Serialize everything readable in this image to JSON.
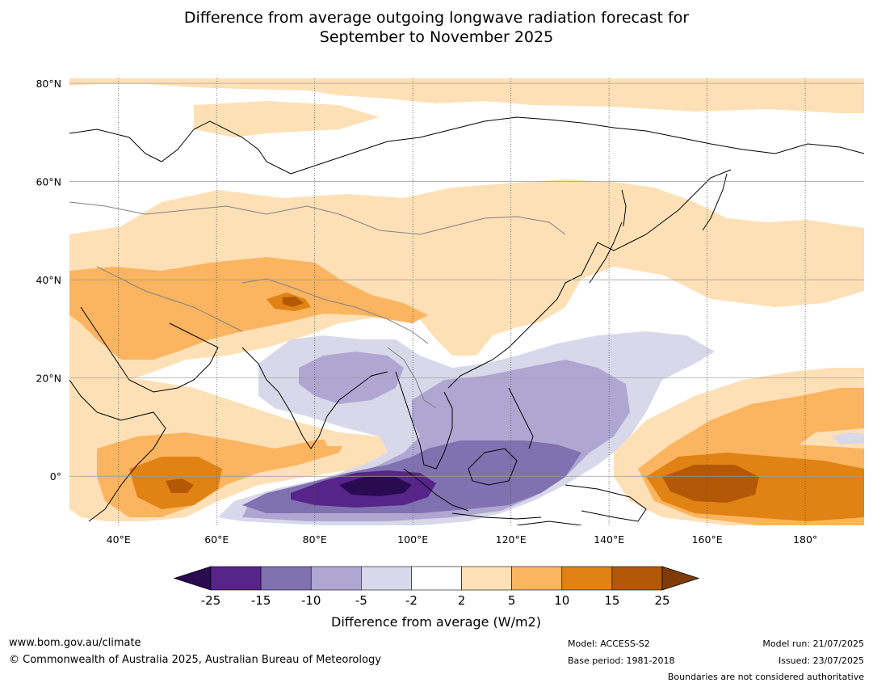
{
  "title_line1": "Difference from average outgoing longwave radiation forecast for",
  "title_line2": "September to November 2025",
  "map": {
    "lon_min": 30,
    "lon_max": 192,
    "lat_min": -10,
    "lat_max": 81,
    "x_ticks": [
      "40°E",
      "60°E",
      "80°E",
      "100°E",
      "120°E",
      "140°E",
      "160°E",
      "180°"
    ],
    "x_tick_values": [
      40,
      60,
      80,
      100,
      120,
      140,
      160,
      180
    ],
    "y_ticks": [
      "80°N",
      "60°N",
      "40°N",
      "20°N",
      "0°"
    ],
    "y_tick_values": [
      80,
      60,
      40,
      20,
      0
    ]
  },
  "colorbar": {
    "labels": [
      "-25",
      "-15",
      "-10",
      "-5",
      "-2",
      "2",
      "5",
      "10",
      "15",
      "25"
    ],
    "colors": [
      "#2a0a50",
      "#57248a",
      "#8072b1",
      "#afa7d2",
      "#d9d8ea",
      "#ffffff",
      "#fee0b6",
      "#fbb45f",
      "#e08214",
      "#b35806",
      "#7f3b08"
    ],
    "title": "Difference from average (W/m2)"
  },
  "footer": {
    "website": "www.bom.gov.au/climate",
    "copyright": "© Commonwealth of Australia 2025, Australian Bureau of Meteorology",
    "model": "Model: ACCESS-S2",
    "base_period": "Base period: 1981-2018",
    "model_run": "Model run: 21/07/2025",
    "issued": "Issued: 23/07/2025",
    "disclaimer": "Boundaries are not considered authoritative"
  }
}
